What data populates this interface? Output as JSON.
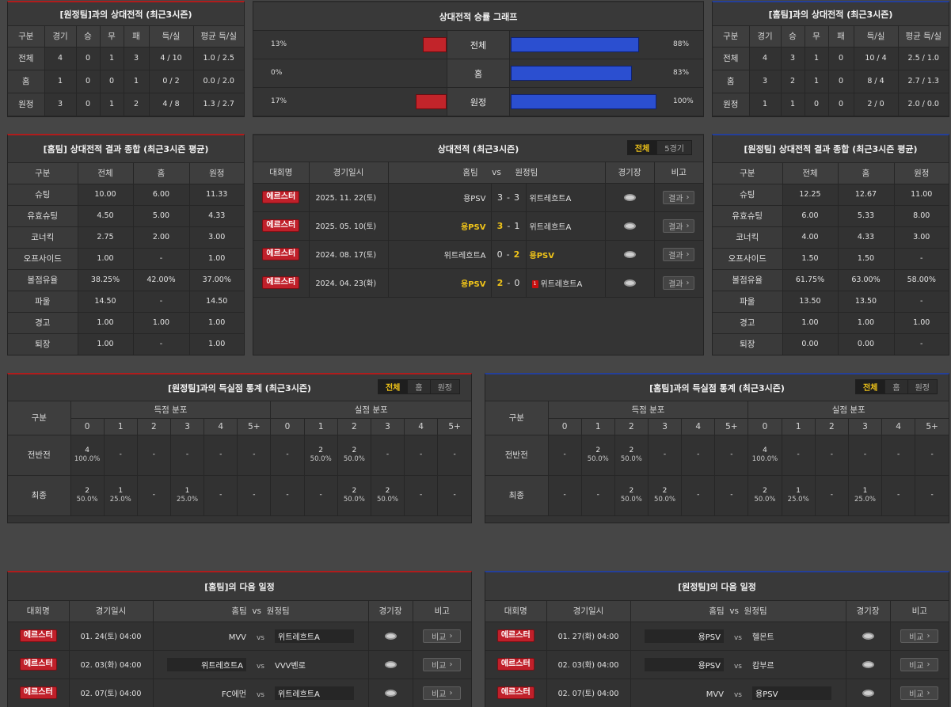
{
  "h2h_home": {
    "title": "[원정팀]과의 상대전적 (최근3시즌)",
    "headers": [
      "구분",
      "경기",
      "승",
      "무",
      "패",
      "득/실",
      "평균 득/실"
    ],
    "rows": [
      [
        "전체",
        "4",
        "0",
        "1",
        "3",
        "4 / 10",
        "1.0 / 2.5"
      ],
      [
        "홈",
        "1",
        "0",
        "0",
        "1",
        "0 / 2",
        "0.0 / 2.0"
      ],
      [
        "원정",
        "3",
        "0",
        "1",
        "2",
        "4 / 8",
        "1.3 / 2.7"
      ]
    ]
  },
  "graph": {
    "title": "상대전적 승률 그래프",
    "rows": [
      {
        "label": "전체",
        "left_pct": "13%",
        "right_pct": "88%",
        "left": 13,
        "right": 88
      },
      {
        "label": "홈",
        "left_pct": "0%",
        "right_pct": "83%",
        "left": 0,
        "right": 83
      },
      {
        "label": "원정",
        "left_pct": "17%",
        "right_pct": "100%",
        "left": 17,
        "right": 100
      }
    ],
    "colors": {
      "left": "#c2242a",
      "right": "#2b4fd0"
    }
  },
  "h2h_away": {
    "title": "[홈팀]과의 상대전적 (최근3시즌)",
    "headers": [
      "구분",
      "경기",
      "승",
      "무",
      "패",
      "득/실",
      "평균 득/실"
    ],
    "rows": [
      [
        "전체",
        "4",
        "3",
        "1",
        "0",
        "10 / 4",
        "2.5 / 1.0"
      ],
      [
        "홈",
        "3",
        "2",
        "1",
        "0",
        "8 / 4",
        "2.7 / 1.3"
      ],
      [
        "원정",
        "1",
        "1",
        "0",
        "0",
        "2 / 0",
        "2.0 / 0.0"
      ]
    ]
  },
  "summary_home": {
    "title": "[홈팀] 상대전적 결과 종합 (최근3시즌 평균)",
    "headers": [
      "구분",
      "전체",
      "홈",
      "원정"
    ],
    "rows": [
      [
        "슈팅",
        "10.00",
        "6.00",
        "11.33"
      ],
      [
        "유효슈팅",
        "4.50",
        "5.00",
        "4.33"
      ],
      [
        "코너킥",
        "2.75",
        "2.00",
        "3.00"
      ],
      [
        "오프사이드",
        "1.00",
        "-",
        "1.00"
      ],
      [
        "볼점유율",
        "38.25%",
        "42.00%",
        "37.00%"
      ],
      [
        "파울",
        "14.50",
        "-",
        "14.50"
      ],
      [
        "경고",
        "1.00",
        "1.00",
        "1.00"
      ],
      [
        "퇴장",
        "1.00",
        "-",
        "1.00"
      ]
    ]
  },
  "matches": {
    "title": "상대전적 (최근3시즌)",
    "tabs": [
      "전체",
      "5경기"
    ],
    "headers": {
      "league": "대회명",
      "date": "경기일시",
      "home": "홈팀",
      "vs": "vs",
      "away": "원정팀",
      "stadium": "경기장",
      "note": "비고"
    },
    "rows": [
      {
        "league": "에르스터",
        "date": "2025. 11. 22(토)",
        "home": "용PSV",
        "hs": "3",
        "sep": "-",
        "as": "3",
        "away": "위트레흐트A",
        "win": "none",
        "red": "",
        "btn": "결과"
      },
      {
        "league": "에르스터",
        "date": "2025. 05. 10(토)",
        "home": "용PSV",
        "hs": "3",
        "sep": "-",
        "as": "1",
        "away": "위트레흐트A",
        "win": "home",
        "red": "",
        "btn": "결과"
      },
      {
        "league": "에르스터",
        "date": "2024. 08. 17(토)",
        "home": "위트레흐트A",
        "hs": "0",
        "sep": "-",
        "as": "2",
        "away": "용PSV",
        "win": "away",
        "red": "",
        "btn": "결과"
      },
      {
        "league": "에르스터",
        "date": "2024. 04. 23(화)",
        "home": "용PSV",
        "hs": "2",
        "sep": "-",
        "as": "0",
        "away": "위트레흐트A",
        "win": "home",
        "red": "1",
        "btn": "결과"
      }
    ]
  },
  "summary_away": {
    "title": "[원정팀] 상대전적 결과 종합 (최근3시즌 평균)",
    "headers": [
      "구분",
      "전체",
      "홈",
      "원정"
    ],
    "rows": [
      [
        "슈팅",
        "12.25",
        "12.67",
        "11.00"
      ],
      [
        "유효슈팅",
        "6.00",
        "5.33",
        "8.00"
      ],
      [
        "코너킥",
        "4.00",
        "4.33",
        "3.00"
      ],
      [
        "오프사이드",
        "1.50",
        "1.50",
        "-"
      ],
      [
        "볼점유율",
        "61.75%",
        "63.00%",
        "58.00%"
      ],
      [
        "파울",
        "13.50",
        "13.50",
        "-"
      ],
      [
        "경고",
        "1.00",
        "1.00",
        "1.00"
      ],
      [
        "퇴장",
        "0.00",
        "0.00",
        "-"
      ]
    ]
  },
  "goals_home": {
    "title": "[원정팀]과의 득실점 통계 (최근3시즌)",
    "tabs": [
      "전체",
      "홈",
      "원정"
    ],
    "h_cat": "구분",
    "h_scored": "득점 분포",
    "h_conceded": "실점 분포",
    "cols": [
      "0",
      "1",
      "2",
      "3",
      "4",
      "5+"
    ],
    "rows": [
      {
        "label": "전반전",
        "cells": [
          [
            "4",
            "100.0%"
          ],
          [
            "-",
            ""
          ],
          [
            "-",
            ""
          ],
          [
            "-",
            ""
          ],
          [
            "-",
            ""
          ],
          [
            "-",
            ""
          ],
          [
            "-",
            ""
          ],
          [
            "2",
            "50.0%"
          ],
          [
            "2",
            "50.0%"
          ],
          [
            "-",
            ""
          ],
          [
            "-",
            ""
          ],
          [
            "-",
            ""
          ]
        ]
      },
      {
        "label": "최종",
        "cells": [
          [
            "2",
            "50.0%"
          ],
          [
            "1",
            "25.0%"
          ],
          [
            "-",
            ""
          ],
          [
            "1",
            "25.0%"
          ],
          [
            "-",
            ""
          ],
          [
            "-",
            ""
          ],
          [
            "-",
            ""
          ],
          [
            "-",
            ""
          ],
          [
            "2",
            "50.0%"
          ],
          [
            "2",
            "50.0%"
          ],
          [
            "-",
            ""
          ],
          [
            "-",
            ""
          ]
        ]
      }
    ]
  },
  "goals_away": {
    "title": "[홈팀]과의 득실점 통계 (최근3시즌)",
    "tabs": [
      "전체",
      "홈",
      "원정"
    ],
    "h_cat": "구분",
    "h_scored": "득점 분포",
    "h_conceded": "실점 분포",
    "cols": [
      "0",
      "1",
      "2",
      "3",
      "4",
      "5+"
    ],
    "rows": [
      {
        "label": "전반전",
        "cells": [
          [
            "-",
            ""
          ],
          [
            "2",
            "50.0%"
          ],
          [
            "2",
            "50.0%"
          ],
          [
            "-",
            ""
          ],
          [
            "-",
            ""
          ],
          [
            "-",
            ""
          ],
          [
            "4",
            "100.0%"
          ],
          [
            "-",
            ""
          ],
          [
            "-",
            ""
          ],
          [
            "-",
            ""
          ],
          [
            "-",
            ""
          ],
          [
            "-",
            ""
          ]
        ]
      },
      {
        "label": "최종",
        "cells": [
          [
            "-",
            ""
          ],
          [
            "-",
            ""
          ],
          [
            "2",
            "50.0%"
          ],
          [
            "2",
            "50.0%"
          ],
          [
            "-",
            ""
          ],
          [
            "-",
            ""
          ],
          [
            "2",
            "50.0%"
          ],
          [
            "1",
            "25.0%"
          ],
          [
            "-",
            ""
          ],
          [
            "1",
            "25.0%"
          ],
          [
            "-",
            ""
          ],
          [
            "-",
            ""
          ]
        ]
      }
    ]
  },
  "next_home": {
    "title": "[홈팀]의 다음 일정",
    "headers": {
      "league": "대회명",
      "date": "경기일시",
      "teams": "홈팀  vs  원정팀",
      "stadium": "경기장",
      "note": "비고"
    },
    "rows": [
      {
        "league": "에르스터",
        "date": "01. 24(토) 04:00",
        "home": "MVV",
        "vs": "vs",
        "away": "위트레흐트A",
        "hl": "away",
        "btn": "비교"
      },
      {
        "league": "에르스터",
        "date": "02. 03(화) 04:00",
        "home": "위트레흐트A",
        "vs": "vs",
        "away": "VVV벤로",
        "hl": "home",
        "btn": "비교"
      },
      {
        "league": "에르스터",
        "date": "02. 07(토) 04:00",
        "home": "FC에먼",
        "vs": "vs",
        "away": "위트레흐트A",
        "hl": "away",
        "btn": "비교"
      }
    ]
  },
  "next_away": {
    "title": "[원정팀]의 다음 일정",
    "headers": {
      "league": "대회명",
      "date": "경기일시",
      "teams": "홈팀  vs  원정팀",
      "stadium": "경기장",
      "note": "비고"
    },
    "rows": [
      {
        "league": "에르스터",
        "date": "01. 27(화) 04:00",
        "home": "용PSV",
        "vs": "vs",
        "away": "헬몬트",
        "hl": "home",
        "btn": "비교"
      },
      {
        "league": "에르스터",
        "date": "02. 03(화) 04:00",
        "home": "용PSV",
        "vs": "vs",
        "away": "캄부르",
        "hl": "home",
        "btn": "비교"
      },
      {
        "league": "에르스터",
        "date": "02. 07(토) 04:00",
        "home": "MVV",
        "vs": "vs",
        "away": "용PSV",
        "hl": "away",
        "btn": "비교"
      }
    ]
  }
}
